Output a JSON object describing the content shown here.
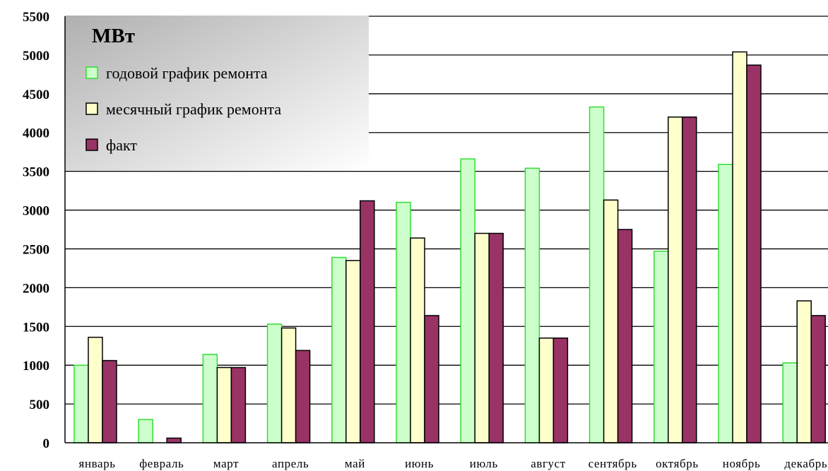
{
  "chart_data": {
    "type": "bar",
    "unit_label": "МВт",
    "categories": [
      "январь",
      "февраль",
      "март",
      "апрель",
      "май",
      "июнь",
      "июль",
      "август",
      "сентябрь",
      "октябрь",
      "ноябрь",
      "декабрь"
    ],
    "series": [
      {
        "name": "годовой график ремонта",
        "color": "#ccffcc",
        "stroke": "#33dd33",
        "values": [
          1000,
          300,
          1140,
          1530,
          2390,
          3100,
          3660,
          3540,
          4330,
          2470,
          3590,
          1030
        ]
      },
      {
        "name": "месячный график ремонта",
        "color": "#ffffcc",
        "stroke": "#000000",
        "values": [
          1360,
          0,
          970,
          1480,
          2350,
          2640,
          2700,
          1350,
          3130,
          4200,
          5040,
          1830
        ]
      },
      {
        "name": "факт",
        "color": "#993366",
        "stroke": "#000000",
        "values": [
          1060,
          60,
          970,
          1190,
          3120,
          1640,
          2700,
          1350,
          2750,
          4200,
          4870,
          1640
        ]
      }
    ],
    "ylim": [
      0,
      5500
    ],
    "yticks": [
      0,
      500,
      1000,
      1500,
      2000,
      2500,
      3000,
      3500,
      4000,
      4500,
      5000,
      5500
    ],
    "grid": true,
    "legend_position": "top-left",
    "xlabel": "",
    "ylabel": ""
  }
}
